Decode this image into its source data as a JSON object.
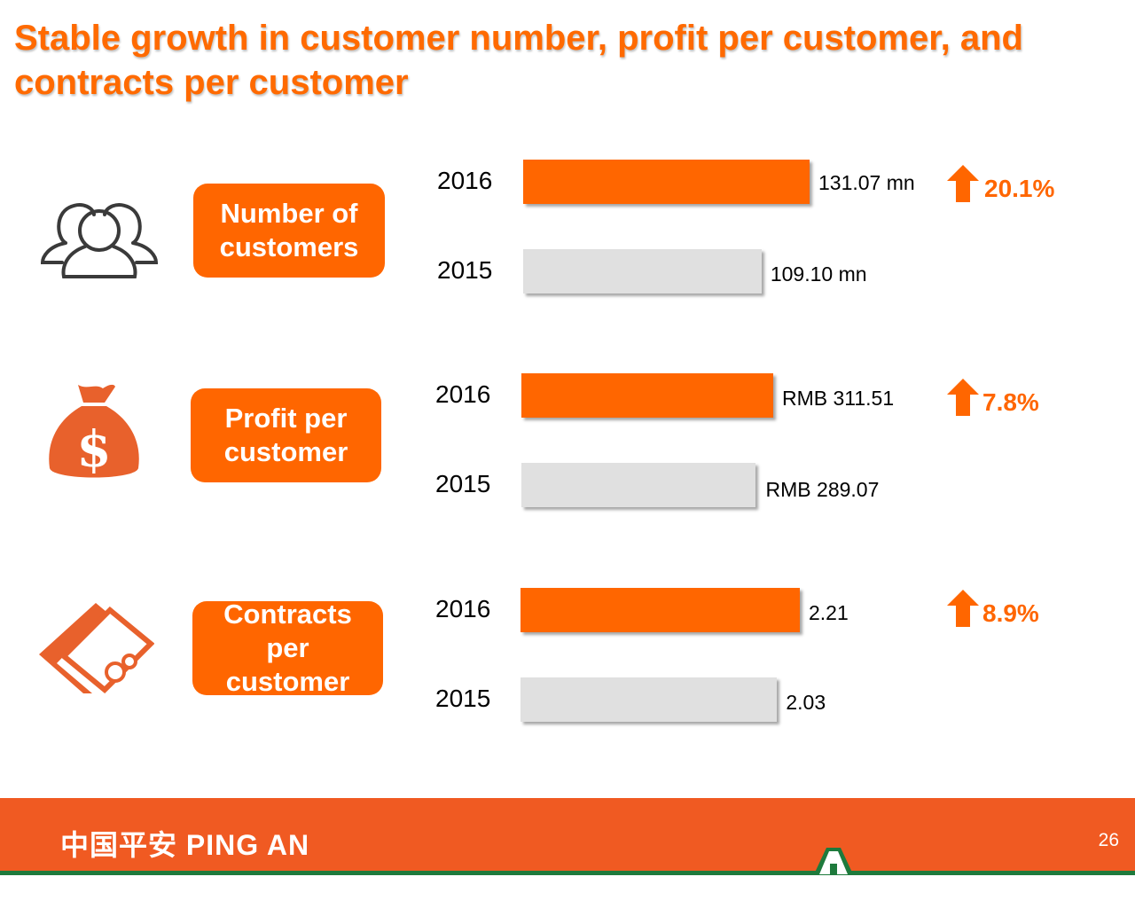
{
  "title": "Stable growth in customer number, profit per customer, and contracts per customer",
  "chart_data": [
    {
      "type": "bar",
      "title": "Number of customers",
      "categories": [
        "2016",
        "2015"
      ],
      "values": [
        131.07,
        109.1
      ],
      "value_labels": [
        "131.07 mn",
        "109.10 mn"
      ],
      "growth": "20.1%",
      "icon": "people-icon"
    },
    {
      "type": "bar",
      "title": "Profit per customer",
      "categories": [
        "2016",
        "2015"
      ],
      "values": [
        311.51,
        289.07
      ],
      "value_labels": [
        "RMB 311.51",
        "RMB 289.07"
      ],
      "growth": "7.8%",
      "icon": "money-bag-icon"
    },
    {
      "type": "bar",
      "title": "Contracts per customer",
      "categories": [
        "2016",
        "2015"
      ],
      "values": [
        2.21,
        2.03
      ],
      "value_labels": [
        "2.21",
        "2.03"
      ],
      "growth": "8.9%",
      "icon": "contract-icon"
    }
  ],
  "colors": {
    "current": "#FF6600",
    "previous": "#E0E0E0",
    "footer": "#F05A22",
    "accent_green": "#1E7A3C"
  },
  "footer": {
    "logo": "中国平安 PING AN",
    "page": "26"
  }
}
